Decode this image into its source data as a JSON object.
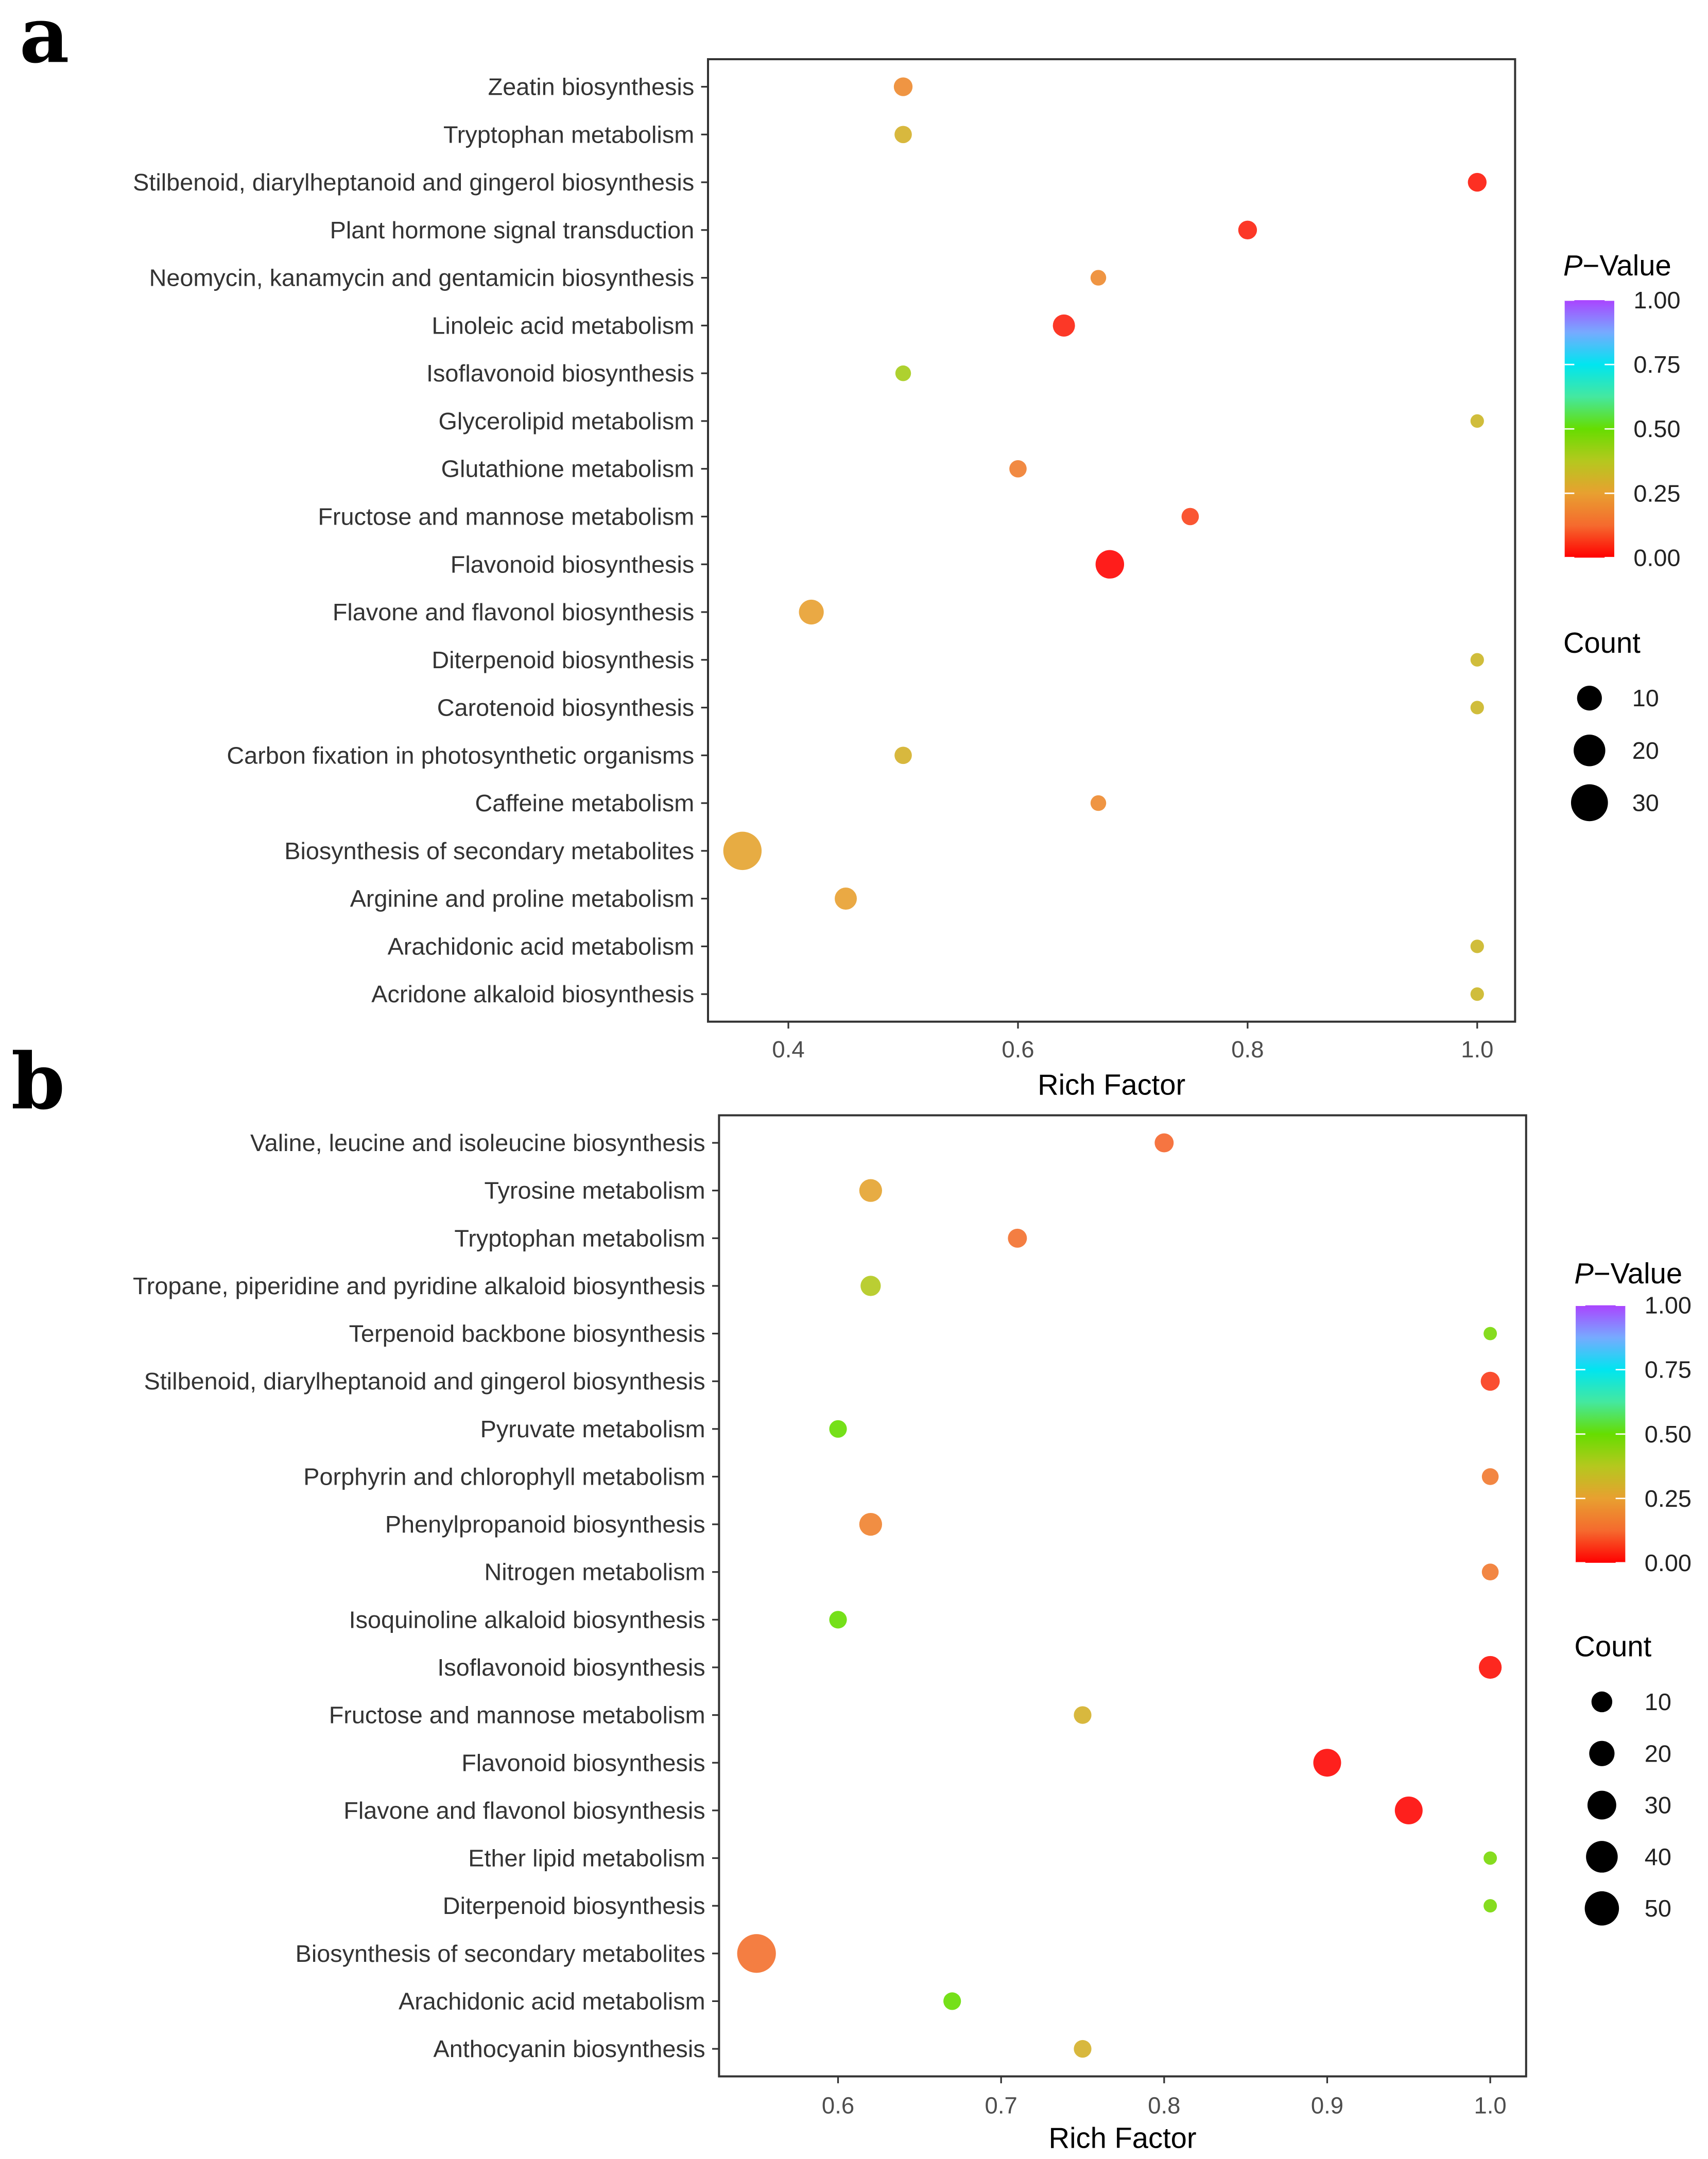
{
  "chart_data": [
    {
      "panel": "a",
      "type": "scatter",
      "xlabel": "Rich Factor",
      "xticks": [
        0.4,
        0.6,
        0.8,
        1.0
      ],
      "xtick_labels": [
        "0.4",
        "0.6",
        "0.8",
        "1.0"
      ],
      "xlim": [
        0.33,
        1.033
      ],
      "color_legend": {
        "title_italic": "P",
        "title_rest": "−Value",
        "ticks": [
          "1.00",
          "0.75",
          "0.50",
          "0.25",
          "0.00"
        ]
      },
      "size_legend": {
        "title": "Count",
        "values": [
          10,
          20,
          30
        ]
      },
      "points": [
        {
          "pathway": "Zeatin biosynthesis",
          "rich_factor": 0.5,
          "p_value": 0.2,
          "count": 4
        },
        {
          "pathway": "Tryptophan metabolism",
          "rich_factor": 0.5,
          "p_value": 0.3,
          "count": 3
        },
        {
          "pathway": "Stilbenoid, diarylheptanoid and gingerol biosynthesis",
          "rich_factor": 1.0,
          "p_value": 0.03,
          "count": 4
        },
        {
          "pathway": "Plant hormone signal transduction",
          "rich_factor": 0.8,
          "p_value": 0.04,
          "count": 4
        },
        {
          "pathway": "Neomycin, kanamycin and gentamicin biosynthesis",
          "rich_factor": 0.67,
          "p_value": 0.2,
          "count": 2
        },
        {
          "pathway": "Linoleic acid metabolism",
          "rich_factor": 0.64,
          "p_value": 0.04,
          "count": 7
        },
        {
          "pathway": "Isoflavonoid biosynthesis",
          "rich_factor": 0.5,
          "p_value": 0.4,
          "count": 2
        },
        {
          "pathway": "Glycerolipid metabolism",
          "rich_factor": 1.0,
          "p_value": 0.32,
          "count": 1
        },
        {
          "pathway": "Glutathione metabolism",
          "rich_factor": 0.6,
          "p_value": 0.17,
          "count": 3
        },
        {
          "pathway": "Fructose and mannose metabolism",
          "rich_factor": 0.75,
          "p_value": 0.08,
          "count": 3
        },
        {
          "pathway": "Flavonoid biosynthesis",
          "rich_factor": 0.68,
          "p_value": 0.005,
          "count": 15
        },
        {
          "pathway": "Flavone and flavonol biosynthesis",
          "rich_factor": 0.42,
          "p_value": 0.25,
          "count": 10
        },
        {
          "pathway": "Diterpenoid biosynthesis",
          "rich_factor": 1.0,
          "p_value": 0.32,
          "count": 1
        },
        {
          "pathway": "Carotenoid biosynthesis",
          "rich_factor": 1.0,
          "p_value": 0.32,
          "count": 1
        },
        {
          "pathway": "Carbon fixation in photosynthetic organisms",
          "rich_factor": 0.5,
          "p_value": 0.3,
          "count": 3
        },
        {
          "pathway": "Caffeine metabolism",
          "rich_factor": 0.67,
          "p_value": 0.2,
          "count": 2
        },
        {
          "pathway": "Biosynthesis of secondary metabolites",
          "rich_factor": 0.36,
          "p_value": 0.26,
          "count": 33
        },
        {
          "pathway": "Arginine and proline metabolism",
          "rich_factor": 0.45,
          "p_value": 0.25,
          "count": 7
        },
        {
          "pathway": "Arachidonic acid metabolism",
          "rich_factor": 1.0,
          "p_value": 0.32,
          "count": 1
        },
        {
          "pathway": "Acridone alkaloid biosynthesis",
          "rich_factor": 1.0,
          "p_value": 0.32,
          "count": 1
        }
      ]
    },
    {
      "panel": "b",
      "type": "scatter",
      "xlabel": "Rich Factor",
      "xticks": [
        0.6,
        0.7,
        0.8,
        0.9,
        1.0
      ],
      "xtick_labels": [
        "0.6",
        "0.7",
        "0.8",
        "0.9",
        "1.0"
      ],
      "xlim": [
        0.527,
        1.022
      ],
      "color_legend": {
        "title_italic": "P",
        "title_rest": "−Value",
        "ticks": [
          "1.00",
          "0.75",
          "0.50",
          "0.25",
          "0.00"
        ]
      },
      "size_legend": {
        "title": "Count",
        "values": [
          10,
          20,
          30,
          40,
          50
        ]
      },
      "points": [
        {
          "pathway": "Valine, leucine and isoleucine biosynthesis",
          "rich_factor": 0.8,
          "p_value": 0.12,
          "count": 7
        },
        {
          "pathway": "Tyrosine metabolism",
          "rich_factor": 0.62,
          "p_value": 0.26,
          "count": 14
        },
        {
          "pathway": "Tryptophan metabolism",
          "rich_factor": 0.71,
          "p_value": 0.14,
          "count": 7
        },
        {
          "pathway": "Tropane, piperidine and pyridine alkaloid biosynthesis",
          "rich_factor": 0.62,
          "p_value": 0.38,
          "count": 9
        },
        {
          "pathway": "Terpenoid backbone biosynthesis",
          "rich_factor": 1.0,
          "p_value": 0.47,
          "count": 1
        },
        {
          "pathway": "Stilbenoid, diarylheptanoid and gingerol biosynthesis",
          "rich_factor": 1.0,
          "p_value": 0.07,
          "count": 7
        },
        {
          "pathway": "Pyruvate metabolism",
          "rich_factor": 0.6,
          "p_value": 0.5,
          "count": 5
        },
        {
          "pathway": "Porphyrin and chlorophyll metabolism",
          "rich_factor": 1.0,
          "p_value": 0.16,
          "count": 4
        },
        {
          "pathway": "Phenylpropanoid biosynthesis",
          "rich_factor": 0.62,
          "p_value": 0.18,
          "count": 14
        },
        {
          "pathway": "Nitrogen metabolism",
          "rich_factor": 1.0,
          "p_value": 0.16,
          "count": 4
        },
        {
          "pathway": "Isoquinoline alkaloid biosynthesis",
          "rich_factor": 0.6,
          "p_value": 0.5,
          "count": 5
        },
        {
          "pathway": "Isoflavonoid biosynthesis",
          "rich_factor": 1.0,
          "p_value": 0.02,
          "count": 14
        },
        {
          "pathway": "Fructose and mannose metabolism",
          "rich_factor": 0.75,
          "p_value": 0.3,
          "count": 5
        },
        {
          "pathway": "Flavonoid biosynthesis",
          "rich_factor": 0.9,
          "p_value": 0.01,
          "count": 27
        },
        {
          "pathway": "Flavone and flavonol biosynthesis",
          "rich_factor": 0.95,
          "p_value": 0.01,
          "count": 27
        },
        {
          "pathway": "Ether lipid metabolism",
          "rich_factor": 1.0,
          "p_value": 0.47,
          "count": 1
        },
        {
          "pathway": "Diterpenoid biosynthesis",
          "rich_factor": 1.0,
          "p_value": 0.47,
          "count": 1
        },
        {
          "pathway": "Biosynthesis of secondary metabolites",
          "rich_factor": 0.55,
          "p_value": 0.14,
          "count": 70
        },
        {
          "pathway": "Arachidonic acid metabolism",
          "rich_factor": 0.67,
          "p_value": 0.5,
          "count": 5
        },
        {
          "pathway": "Anthocyanin biosynthesis",
          "rich_factor": 0.75,
          "p_value": 0.3,
          "count": 5
        }
      ]
    }
  ],
  "panel_labels": {
    "a": "a",
    "b": "b"
  },
  "colors": {
    "gradient": [
      "#ff0000",
      "#f56a2e",
      "#e8a030",
      "#b5c81e",
      "#66dd00",
      "#44e8a0",
      "#00e5f0",
      "#77aaff",
      "#aa44ff"
    ],
    "axis": "#333333"
  }
}
